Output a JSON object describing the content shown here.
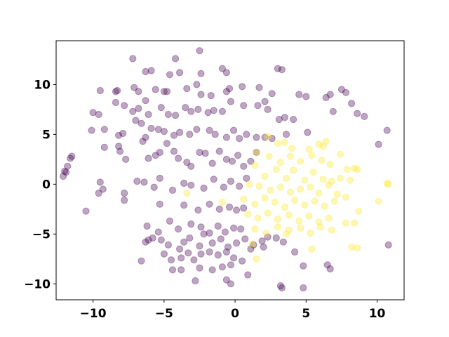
{
  "chart_data": {
    "type": "scatter",
    "title": "",
    "xlabel": "",
    "ylabel": "",
    "xlim": [
      -12.6,
      11.9
    ],
    "ylim": [
      -11.6,
      14.4
    ],
    "xticks": [
      -10,
      -5,
      0,
      5,
      10
    ],
    "yticks": [
      -10,
      -5,
      0,
      5,
      10
    ],
    "xtick_labels": [
      "−10",
      "−5",
      "0",
      "5",
      "10"
    ],
    "ytick_labels": [
      "−10",
      "−5",
      "0",
      "5",
      "10"
    ],
    "grid": false,
    "legend": "none",
    "marker_alpha": 0.35,
    "series": [
      {
        "color": "#440154",
        "points": [
          [
            -7.2,
            12.6
          ],
          [
            -4.2,
            12.6
          ],
          [
            -2.5,
            13.4
          ],
          [
            -6.3,
            11.3
          ],
          [
            -5.9,
            11.4
          ],
          [
            -4.6,
            11.0
          ],
          [
            -3.9,
            11.2
          ],
          [
            -2.4,
            11.1
          ],
          [
            -0.9,
            11.6
          ],
          [
            -0.6,
            11.2
          ],
          [
            3.0,
            11.6
          ],
          [
            3.3,
            11.5
          ],
          [
            -9.5,
            9.4
          ],
          [
            -8.4,
            9.3
          ],
          [
            -8.3,
            9.4
          ],
          [
            -7.1,
            9.7
          ],
          [
            -6.8,
            9.3
          ],
          [
            -5.6,
            9.5
          ],
          [
            -5.0,
            9.3
          ],
          [
            -4.8,
            9.3
          ],
          [
            -3.4,
            9.6
          ],
          [
            -2.7,
            10.0
          ],
          [
            -2.4,
            9.0
          ],
          [
            -1.7,
            8.9
          ],
          [
            -0.6,
            9.3
          ],
          [
            -0.4,
            9.6
          ],
          [
            0.5,
            9.8
          ],
          [
            1.7,
            9.7
          ],
          [
            2.6,
            9.1
          ],
          [
            4.5,
            9.0
          ],
          [
            5.0,
            8.8
          ],
          [
            6.4,
            8.7
          ],
          [
            6.7,
            9.0
          ],
          [
            7.5,
            9.5
          ],
          [
            7.8,
            9.2
          ],
          [
            8.2,
            8.1
          ],
          [
            -10.0,
            7.2
          ],
          [
            -9.6,
            7.0
          ],
          [
            -8.4,
            8.2
          ],
          [
            -7.8,
            7.9
          ],
          [
            -7.2,
            7.3
          ],
          [
            -6.8,
            7.6
          ],
          [
            -6.3,
            8.4
          ],
          [
            -6.1,
            7.0
          ],
          [
            -5.2,
            7.7
          ],
          [
            -4.7,
            7.0
          ],
          [
            -4.2,
            6.9
          ],
          [
            -3.5,
            7.7
          ],
          [
            -3.1,
            7.3
          ],
          [
            -2.6,
            7.5
          ],
          [
            -1.9,
            7.2
          ],
          [
            -1.5,
            7.4
          ],
          [
            -0.9,
            7.3
          ],
          [
            -0.3,
            8.3
          ],
          [
            0.6,
            7.9
          ],
          [
            1.6,
            7.9
          ],
          [
            2.1,
            8.3
          ],
          [
            2.3,
            7.5
          ],
          [
            3.1,
            6.5
          ],
          [
            3.5,
            6.7
          ],
          [
            4.1,
            6.5
          ],
          [
            6.9,
            7.3
          ],
          [
            8.6,
            7.1
          ],
          [
            9.1,
            6.8
          ],
          [
            -10.1,
            5.4
          ],
          [
            -9.2,
            5.5
          ],
          [
            -8.2,
            4.9
          ],
          [
            -7.9,
            5.1
          ],
          [
            -7.0,
            6.4
          ],
          [
            -6.6,
            6.1
          ],
          [
            -6.3,
            4.7
          ],
          [
            -5.9,
            5.6
          ],
          [
            -5.4,
            5.5
          ],
          [
            -5.0,
            5.3
          ],
          [
            -4.3,
            4.9
          ],
          [
            -3.9,
            5.2
          ],
          [
            -3.2,
            5.0
          ],
          [
            -2.7,
            5.5
          ],
          [
            -1.8,
            5.4
          ],
          [
            -1.4,
            5.0
          ],
          [
            -0.6,
            4.7
          ],
          [
            -0.1,
            5.4
          ],
          [
            0.3,
            4.6
          ],
          [
            0.8,
            5.0
          ],
          [
            1.5,
            4.7
          ],
          [
            2.1,
            4.7
          ],
          [
            2.6,
            4.6
          ],
          [
            3.6,
            5.0
          ],
          [
            5.1,
            5.2
          ],
          [
            10.1,
            4.0
          ],
          [
            10.7,
            5.4
          ],
          [
            -12.0,
            1.3
          ],
          [
            -11.8,
            1.8
          ],
          [
            -11.6,
            2.6
          ],
          [
            -11.5,
            2.8
          ],
          [
            -9.2,
            3.7
          ],
          [
            -8.2,
            3.8
          ],
          [
            -8.1,
            3.3
          ],
          [
            -7.7,
            2.5
          ],
          [
            -6.5,
            4.3
          ],
          [
            -6.1,
            2.6
          ],
          [
            -5.6,
            2.9
          ],
          [
            -5.3,
            3.2
          ],
          [
            -4.8,
            4.1
          ],
          [
            -4.3,
            3.3
          ],
          [
            -4.0,
            2.6
          ],
          [
            -3.4,
            2.2
          ],
          [
            -3.1,
            1.8
          ],
          [
            -2.5,
            3.2
          ],
          [
            -2.1,
            3.1
          ],
          [
            -1.6,
            2.1
          ],
          [
            -1.1,
            3.3
          ],
          [
            -0.6,
            2.5
          ],
          [
            -0.2,
            2.3
          ],
          [
            0.2,
            2.9
          ],
          [
            0.6,
            1.8
          ],
          [
            1.1,
            2.3
          ],
          [
            1.5,
            3.2
          ],
          [
            -12.1,
            0.8
          ],
          [
            -11.9,
            1.2
          ],
          [
            -9.5,
            0.2
          ],
          [
            -9.3,
            -0.5
          ],
          [
            -7.8,
            -0.9
          ],
          [
            -6.9,
            0.3
          ],
          [
            -6.4,
            0.2
          ],
          [
            -5.7,
            -0.3
          ],
          [
            -5.3,
            0.6
          ],
          [
            -4.4,
            -0.6
          ],
          [
            -3.6,
            0.1
          ],
          [
            -3.1,
            -0.1
          ],
          [
            -2.2,
            -0.4
          ],
          [
            -1.5,
            0.5
          ],
          [
            -0.8,
            -0.3
          ],
          [
            -0.3,
            0.3
          ],
          [
            0.3,
            -0.2
          ],
          [
            0.8,
            0.6
          ],
          [
            -10.5,
            -2.7
          ],
          [
            -9.6,
            -0.9
          ],
          [
            -7.8,
            -1.6
          ],
          [
            -5.3,
            -2.0
          ],
          [
            -3.6,
            -2.1
          ],
          [
            -2.6,
            -2.6
          ],
          [
            -1.8,
            -2.0
          ],
          [
            -1.1,
            -2.5
          ],
          [
            -0.4,
            -2.3
          ],
          [
            0.1,
            -2.6
          ],
          [
            0.6,
            -2.4
          ],
          [
            -6.2,
            -4.2
          ],
          [
            -5.4,
            -4.8
          ],
          [
            -4.6,
            -3.7
          ],
          [
            -4.0,
            -4.5
          ],
          [
            -3.1,
            -4.0
          ],
          [
            -2.4,
            -4.3
          ],
          [
            -1.8,
            -4.9
          ],
          [
            -1.2,
            -4.2
          ],
          [
            -0.7,
            -4.8
          ],
          [
            -0.1,
            -4.4
          ],
          [
            0.4,
            -4.5
          ],
          [
            -6.3,
            -5.8
          ],
          [
            -6.1,
            -5.6
          ],
          [
            -5.8,
            -5.4
          ],
          [
            -5.2,
            -5.6
          ],
          [
            -4.7,
            -6.1
          ],
          [
            -3.9,
            -6.5
          ],
          [
            -3.6,
            -5.8
          ],
          [
            -3.2,
            -5.4
          ],
          [
            -2.5,
            -6.2
          ],
          [
            -2.2,
            -5.0
          ],
          [
            -1.6,
            -5.9
          ],
          [
            -1.0,
            -5.5
          ],
          [
            -0.5,
            -6.3
          ],
          [
            0.1,
            -5.9
          ],
          [
            0.7,
            -5.5
          ],
          [
            1.3,
            -6.1
          ],
          [
            1.9,
            -5.7
          ],
          [
            2.3,
            -5.3
          ],
          [
            2.9,
            -5.4
          ],
          [
            3.4,
            -5.8
          ],
          [
            -5.0,
            -7.0
          ],
          [
            -4.5,
            -7.6
          ],
          [
            -3.8,
            -7.4
          ],
          [
            -3.3,
            -6.9
          ],
          [
            -2.9,
            -7.6
          ],
          [
            -2.4,
            -7.0
          ],
          [
            -1.8,
            -6.8
          ],
          [
            -1.2,
            -7.1
          ],
          [
            -0.6,
            -6.8
          ],
          [
            -0.1,
            -7.4
          ],
          [
            0.5,
            -7.7
          ],
          [
            1.1,
            -6.5
          ],
          [
            2.0,
            -6.3
          ],
          [
            4.2,
            -6.8
          ],
          [
            -6.6,
            -7.7
          ],
          [
            -4.4,
            -8.6
          ],
          [
            -3.8,
            -8.6
          ],
          [
            -2.5,
            -8.4
          ],
          [
            -1.6,
            -8.6
          ],
          [
            -0.9,
            -8.3
          ],
          [
            -0.3,
            -8.1
          ],
          [
            0.9,
            -9.1
          ],
          [
            4.8,
            -8.2
          ],
          [
            6.5,
            -8.1
          ],
          [
            6.7,
            -8.5
          ],
          [
            -2.8,
            -9.7
          ],
          [
            -0.6,
            -9.6
          ],
          [
            -0.3,
            -10.0
          ],
          [
            3.2,
            -10.2
          ],
          [
            3.3,
            -10.4
          ],
          [
            4.8,
            -10.4
          ],
          [
            10.8,
            -6.1
          ]
        ]
      },
      {
        "color": "#fde725",
        "points": [
          [
            2.3,
            4.8
          ],
          [
            3.0,
            4.1
          ],
          [
            3.5,
            4.2
          ],
          [
            4.0,
            3.6
          ],
          [
            5.2,
            3.5
          ],
          [
            5.9,
            4.0
          ],
          [
            6.2,
            3.8
          ],
          [
            6.4,
            4.3
          ],
          [
            1.5,
            3.2
          ],
          [
            2.4,
            2.8
          ],
          [
            3.2,
            2.2
          ],
          [
            3.9,
            2.8
          ],
          [
            4.6,
            2.3
          ],
          [
            5.4,
            2.9
          ],
          [
            6.1,
            2.4
          ],
          [
            6.7,
            2.0
          ],
          [
            7.4,
            3.0
          ],
          [
            7.9,
            1.5
          ],
          [
            8.4,
            1.6
          ],
          [
            8.6,
            1.5
          ],
          [
            1.4,
            1.9
          ],
          [
            2.1,
            0.8
          ],
          [
            2.9,
            1.5
          ],
          [
            3.6,
            0.6
          ],
          [
            4.1,
            1.4
          ],
          [
            4.9,
            0.4
          ],
          [
            5.5,
            1.2
          ],
          [
            6.2,
            0.5
          ],
          [
            6.8,
            0.3
          ],
          [
            7.4,
            0.6
          ],
          [
            8.1,
            0.4
          ],
          [
            -3.4,
            -0.9
          ],
          [
            1.0,
            0.0
          ],
          [
            1.7,
            -0.2
          ],
          [
            2.5,
            -0.6
          ],
          [
            3.2,
            -0.3
          ],
          [
            3.9,
            -0.8
          ],
          [
            4.6,
            -0.5
          ],
          [
            5.3,
            -0.3
          ],
          [
            5.9,
            -0.9
          ],
          [
            6.6,
            -0.1
          ],
          [
            7.2,
            -1.0
          ],
          [
            10.7,
            0.1
          ],
          [
            10.8,
            0.0
          ],
          [
            -0.9,
            -1.8
          ],
          [
            0.6,
            -1.5
          ],
          [
            1.4,
            -2.0
          ],
          [
            2.1,
            -1.4
          ],
          [
            2.8,
            -1.8
          ],
          [
            3.5,
            -2.3
          ],
          [
            4.2,
            -1.6
          ],
          [
            4.9,
            -2.1
          ],
          [
            5.6,
            -1.7
          ],
          [
            6.3,
            -2.2
          ],
          [
            7.0,
            -1.7
          ],
          [
            7.8,
            -1.3
          ],
          [
            10.1,
            -1.7
          ],
          [
            0.9,
            -3.0
          ],
          [
            1.6,
            -3.4
          ],
          [
            2.3,
            -2.9
          ],
          [
            3.0,
            -3.5
          ],
          [
            3.8,
            -3.1
          ],
          [
            4.5,
            -3.7
          ],
          [
            5.2,
            -3.2
          ],
          [
            5.9,
            -3.8
          ],
          [
            6.6,
            -3.4
          ],
          [
            8.7,
            -2.7
          ],
          [
            1.4,
            -4.5
          ],
          [
            2.2,
            -4.9
          ],
          [
            3.0,
            -4.3
          ],
          [
            3.8,
            -4.6
          ],
          [
            4.6,
            -4.4
          ],
          [
            5.3,
            -4.9
          ],
          [
            6.0,
            -4.3
          ],
          [
            6.8,
            -4.6
          ],
          [
            7.8,
            -3.9
          ],
          [
            8.4,
            -3.9
          ],
          [
            1.2,
            -6.0
          ],
          [
            3.6,
            -5.0
          ],
          [
            5.4,
            -6.5
          ],
          [
            8.2,
            -6.3
          ],
          [
            8.6,
            -6.4
          ],
          [
            1.5,
            -7.5
          ]
        ]
      }
    ]
  }
}
